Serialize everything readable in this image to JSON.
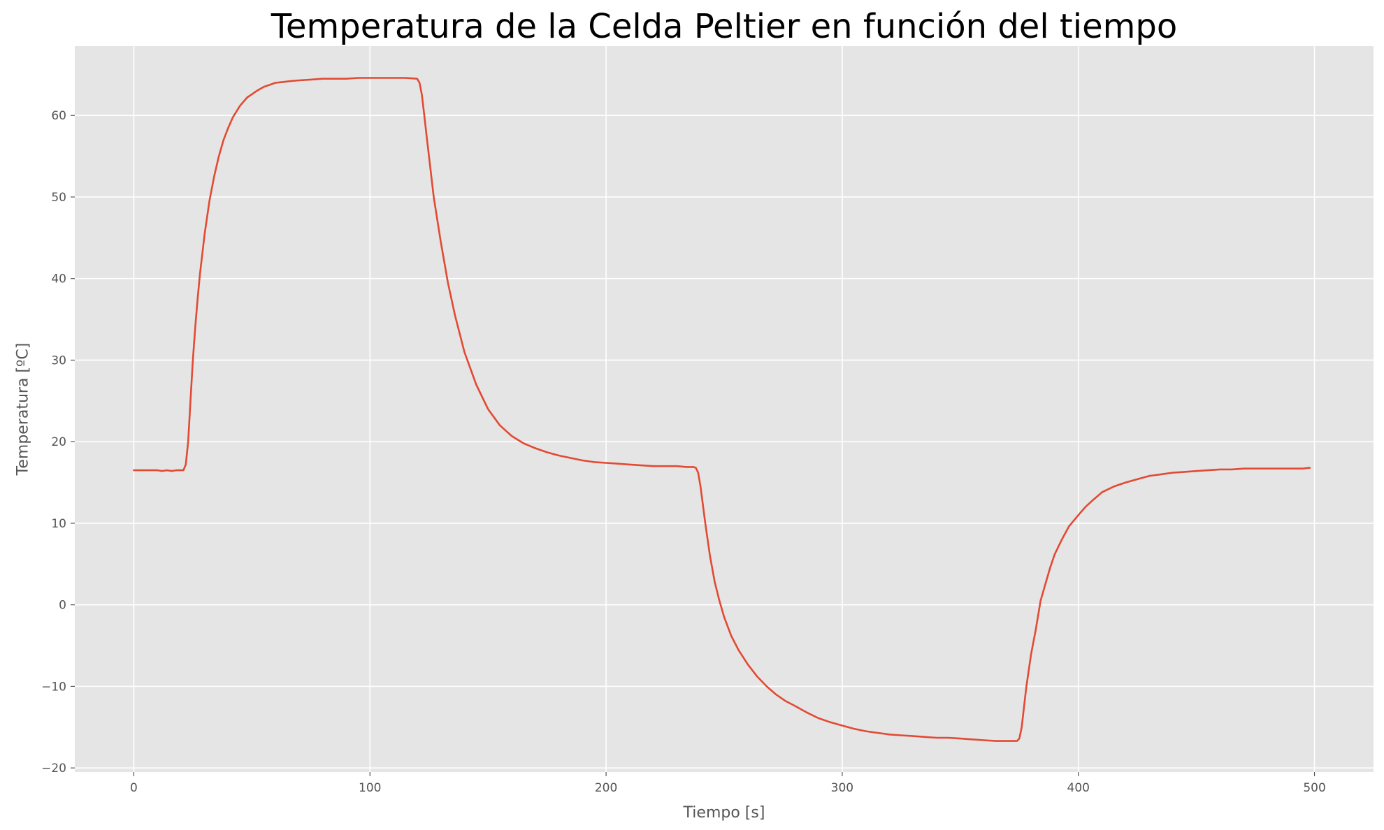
{
  "chart_data": {
    "type": "line",
    "title": "Temperatura de la Celda Peltier en función del tiempo",
    "xlabel": "Tiempo [s]",
    "ylabel": "Temperatura [ºC]",
    "xlim": [
      -25,
      525
    ],
    "ylim": [
      -20.5,
      68.5
    ],
    "xticks": [
      0,
      100,
      200,
      300,
      400,
      500
    ],
    "yticks": [
      -20,
      -10,
      0,
      10,
      20,
      30,
      40,
      50,
      60
    ],
    "xtick_labels": [
      "0",
      "100",
      "200",
      "300",
      "400",
      "500"
    ],
    "ytick_labels": [
      "−20",
      "−10",
      "0",
      "10",
      "20",
      "30",
      "40",
      "50",
      "60"
    ],
    "grid": true,
    "legend": "none",
    "colors": {
      "background": "#e5e5e5",
      "grid": "#ffffff",
      "line": "#e24a33"
    },
    "series": [
      {
        "x": [
          0,
          5,
          10,
          12,
          14,
          16,
          18,
          20,
          21,
          22,
          23,
          24,
          25,
          26,
          27,
          28,
          30,
          32,
          34,
          36,
          38,
          40,
          42,
          45,
          48,
          50,
          52,
          55,
          58,
          60,
          63,
          66,
          70,
          75,
          80,
          85,
          90,
          95,
          100,
          105,
          110,
          115,
          120,
          121,
          122,
          123,
          124,
          125,
          127,
          130,
          133,
          136,
          140,
          145,
          150,
          155,
          160,
          165,
          170,
          175,
          180,
          185,
          190,
          195,
          200,
          205,
          210,
          215,
          220,
          225,
          230,
          234,
          236,
          237,
          238,
          239,
          240,
          242,
          244,
          246,
          248,
          250,
          253,
          256,
          260,
          264,
          268,
          272,
          276,
          280,
          285,
          290,
          295,
          300,
          305,
          310,
          315,
          320,
          325,
          330,
          335,
          340,
          345,
          350,
          355,
          360,
          365,
          370,
          374,
          375,
          376,
          377,
          378,
          380,
          382,
          384,
          386,
          388,
          390,
          393,
          396,
          400,
          403,
          406,
          410,
          415,
          420,
          425,
          430,
          435,
          440,
          445,
          450,
          455,
          460,
          465,
          470,
          475,
          480,
          485,
          490,
          495,
          498
        ],
        "y": [
          16.5,
          16.5,
          16.5,
          16.4,
          16.5,
          16.4,
          16.5,
          16.5,
          16.5,
          17.2,
          20,
          25,
          30,
          34,
          37.5,
          40.5,
          45.5,
          49.5,
          52.5,
          55,
          57,
          58.5,
          59.8,
          61.2,
          62.2,
          62.6,
          63,
          63.5,
          63.8,
          64,
          64.1,
          64.2,
          64.3,
          64.4,
          64.5,
          64.5,
          64.5,
          64.6,
          64.6,
          64.6,
          64.6,
          64.6,
          64.5,
          64,
          62.5,
          60,
          57.5,
          55,
          50,
          44.5,
          39.5,
          35.5,
          31,
          27,
          24,
          22,
          20.7,
          19.8,
          19.2,
          18.7,
          18.3,
          18,
          17.7,
          17.5,
          17.4,
          17.3,
          17.2,
          17.1,
          17,
          17,
          17,
          16.9,
          16.9,
          16.9,
          16.8,
          16.2,
          14.5,
          10,
          6,
          2.8,
          0.5,
          -1.5,
          -3.8,
          -5.5,
          -7.3,
          -8.8,
          -10,
          -11,
          -11.8,
          -12.4,
          -13.2,
          -13.9,
          -14.4,
          -14.8,
          -15.2,
          -15.5,
          -15.7,
          -15.9,
          -16,
          -16.1,
          -16.2,
          -16.3,
          -16.3,
          -16.4,
          -16.5,
          -16.6,
          -16.7,
          -16.7,
          -16.7,
          -16.4,
          -15,
          -12.5,
          -10,
          -6,
          -3,
          0.5,
          2.5,
          4.5,
          6.2,
          8,
          9.6,
          11,
          12,
          12.8,
          13.8,
          14.5,
          15,
          15.4,
          15.8,
          16,
          16.2,
          16.3,
          16.4,
          16.5,
          16.6,
          16.6,
          16.7,
          16.7,
          16.7,
          16.7,
          16.7,
          16.7,
          16.8
        ]
      }
    ]
  }
}
